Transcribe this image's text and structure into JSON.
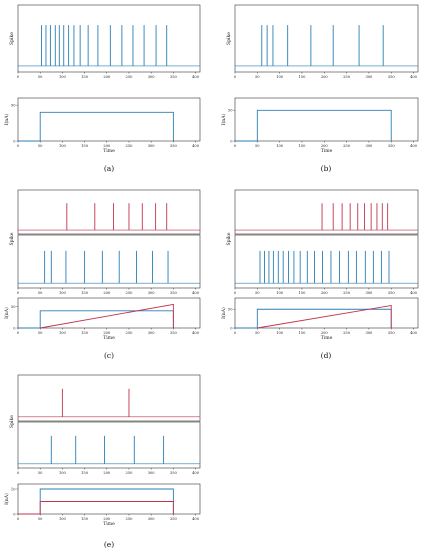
{
  "colors": {
    "blue": "#2a7fb3",
    "red": "#c2334d"
  },
  "chart_data": [
    {
      "id": "a",
      "caption": "(a)",
      "type": "line",
      "spike_ylabel": "Spike",
      "spike_series": [
        {
          "color": "blue",
          "times": [
            53,
            63,
            73,
            84,
            93,
            103,
            114,
            126,
            140,
            158,
            180,
            208,
            234,
            259,
            284,
            311,
            335
          ]
        }
      ],
      "current": {
        "ylabel": "I(nA)",
        "xlabel": "Time",
        "yticks": [
          "0",
          "50"
        ],
        "ylim": [
          0,
          60
        ],
        "lines": [
          {
            "color": "blue",
            "points": [
              [
                0,
                0
              ],
              [
                50,
                0
              ],
              [
                50,
                40
              ],
              [
                350,
                40
              ],
              [
                350,
                0
              ]
            ]
          }
        ]
      },
      "xticks": [
        "0",
        "50",
        "100",
        "150",
        "200",
        "250",
        "300",
        "350",
        "400"
      ],
      "xlim": [
        0,
        410
      ]
    },
    {
      "id": "b",
      "caption": "(b)",
      "type": "line",
      "spike_ylabel": "Spike",
      "spike_series": [
        {
          "color": "blue",
          "times": [
            60,
            72,
            85,
            118,
            170,
            220,
            278,
            332
          ]
        }
      ],
      "current": {
        "ylabel": "I(nA)",
        "xlabel": "Time",
        "yticks": [
          "0",
          "50"
        ],
        "ylim": [
          0,
          70
        ],
        "lines": [
          {
            "color": "blue",
            "points": [
              [
                0,
                0
              ],
              [
                50,
                0
              ],
              [
                50,
                50
              ],
              [
                350,
                50
              ],
              [
                350,
                0
              ]
            ]
          }
        ]
      },
      "xticks": [
        "0",
        "50",
        "100",
        "150",
        "200",
        "250",
        "300",
        "350",
        "400"
      ],
      "xlim": [
        0,
        410
      ]
    },
    {
      "id": "c",
      "caption": "(c)",
      "type": "line",
      "spike_ylabel": "Spike",
      "spike_series": [
        {
          "color": "red",
          "times": [
            110,
            173,
            215,
            250,
            280,
            310,
            335
          ]
        },
        {
          "color": "blue",
          "times": [
            60,
            75,
            108,
            150,
            190,
            228,
            267,
            303,
            338
          ]
        }
      ],
      "current": {
        "ylabel": "I(nA)",
        "xlabel": "Time",
        "yticks": [
          "0",
          "50"
        ],
        "ylim": [
          0,
          70
        ],
        "lines": [
          {
            "color": "blue",
            "points": [
              [
                0,
                0
              ],
              [
                50,
                0
              ],
              [
                50,
                40
              ],
              [
                350,
                40
              ],
              [
                350,
                0
              ]
            ]
          },
          {
            "color": "red",
            "points": [
              [
                50,
                0
              ],
              [
                350,
                55
              ],
              [
                350,
                0
              ]
            ]
          }
        ]
      },
      "xticks": [
        "0",
        "50",
        "100",
        "150",
        "200",
        "250",
        "300",
        "350",
        "400"
      ],
      "xlim": [
        0,
        410
      ]
    },
    {
      "id": "d",
      "caption": "(d)",
      "type": "line",
      "spike_ylabel": "Spike",
      "spike_series": [
        {
          "color": "red",
          "times": [
            195,
            220,
            240,
            258,
            275,
            290,
            305,
            318,
            330,
            342
          ]
        },
        {
          "color": "blue",
          "times": [
            56,
            66,
            76,
            86,
            97,
            108,
            120,
            132,
            146,
            162,
            178,
            196,
            215,
            234,
            254,
            272,
            292,
            310,
            328,
            345
          ]
        }
      ],
      "current": {
        "ylabel": "I(nA)",
        "xlabel": "Time",
        "yticks": [
          "0",
          "50"
        ],
        "ylim": [
          0,
          80
        ],
        "lines": [
          {
            "color": "blue",
            "points": [
              [
                0,
                0
              ],
              [
                50,
                0
              ],
              [
                50,
                50
              ],
              [
                350,
                50
              ],
              [
                350,
                0
              ]
            ]
          },
          {
            "color": "red",
            "points": [
              [
                50,
                0
              ],
              [
                350,
                60
              ],
              [
                350,
                0
              ]
            ]
          }
        ]
      },
      "xticks": [
        "0",
        "50",
        "100",
        "150",
        "200",
        "250",
        "300",
        "350",
        "400"
      ],
      "xlim": [
        0,
        410
      ]
    },
    {
      "id": "e",
      "caption": "(e)",
      "type": "line",
      "spike_ylabel": "Spike",
      "spike_series": [
        {
          "color": "red",
          "times": [
            100,
            250
          ]
        },
        {
          "color": "blue",
          "times": [
            75,
            130,
            195,
            262,
            328
          ]
        }
      ],
      "current": {
        "ylabel": "I(nA)",
        "xlabel": "Time",
        "yticks": [
          "0",
          "10"
        ],
        "ylim": [
          0,
          12
        ],
        "lines": [
          {
            "color": "blue",
            "points": [
              [
                0,
                0
              ],
              [
                50,
                0
              ],
              [
                50,
                10
              ],
              [
                350,
                10
              ],
              [
                350,
                0
              ]
            ]
          },
          {
            "color": "red",
            "points": [
              [
                0,
                0
              ],
              [
                50,
                0
              ],
              [
                50,
                5
              ],
              [
                350,
                5
              ],
              [
                350,
                0
              ]
            ]
          }
        ]
      },
      "xticks": [
        "0",
        "50",
        "100",
        "150",
        "200",
        "250",
        "300",
        "350",
        "400"
      ],
      "xlim": [
        0,
        410
      ]
    }
  ]
}
